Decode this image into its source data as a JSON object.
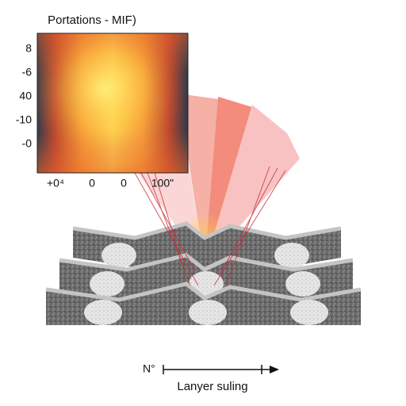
{
  "heatmap": {
    "title": "Portations - MIF)",
    "y_labels": [
      "8",
      "-6",
      "40",
      "-10",
      "-0"
    ],
    "x_labels": [
      "+0⁴",
      "0",
      "0",
      "100\""
    ]
  },
  "scale": {
    "unit": "N°",
    "label": "Lanyer suling"
  }
}
